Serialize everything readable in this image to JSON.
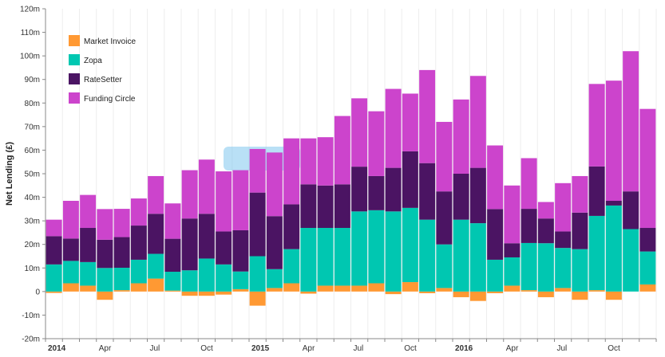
{
  "chart_data": {
    "type": "bar",
    "stacked": true,
    "title": "",
    "ylabel": "Net Lending (£)",
    "xlabel": "",
    "ylim": [
      -20,
      120
    ],
    "yticks": [
      -20,
      -10,
      0,
      10,
      20,
      30,
      40,
      50,
      60,
      70,
      80,
      90,
      100,
      110,
      120
    ],
    "ytick_labels": [
      "-20m",
      "-10m",
      "0",
      "10m",
      "20m",
      "30m",
      "40m",
      "50m",
      "60m",
      "70m",
      "80m",
      "90m",
      "100m",
      "110m",
      "120m"
    ],
    "grid": "vertical",
    "legend_position": "top-left",
    "categories": [
      "Jan 2014",
      "Feb 2014",
      "Mar 2014",
      "Apr 2014",
      "May 2014",
      "Jun 2014",
      "Jul 2014",
      "Aug 2014",
      "Sep 2014",
      "Oct 2014",
      "Nov 2014",
      "Dec 2014",
      "Jan 2015",
      "Feb 2015",
      "Mar 2015",
      "Apr 2015",
      "May 2015",
      "Jun 2015",
      "Jul 2015",
      "Aug 2015",
      "Sep 2015",
      "Oct 2015",
      "Nov 2015",
      "Dec 2015",
      "Jan 2016",
      "Feb 2016",
      "Mar 2016",
      "Apr 2016",
      "May 2016",
      "Jun 2016",
      "Jul 2016",
      "Aug 2016",
      "Sep 2016",
      "Oct 2016",
      "Nov 2016",
      "Dec 2016"
    ],
    "x_tick_labels": [
      {
        "index": 0,
        "label": "2014",
        "bold": true
      },
      {
        "index": 3,
        "label": "Apr",
        "bold": false
      },
      {
        "index": 6,
        "label": "Jul",
        "bold": false
      },
      {
        "index": 9,
        "label": "Oct",
        "bold": false
      },
      {
        "index": 12,
        "label": "2015",
        "bold": true
      },
      {
        "index": 15,
        "label": "Apr",
        "bold": false
      },
      {
        "index": 18,
        "label": "Jul",
        "bold": false
      },
      {
        "index": 21,
        "label": "Oct",
        "bold": false
      },
      {
        "index": 24,
        "label": "2016",
        "bold": true
      },
      {
        "index": 27,
        "label": "Apr",
        "bold": false
      },
      {
        "index": 30,
        "label": "Jul",
        "bold": false
      },
      {
        "index": 33,
        "label": "Oct",
        "bold": false
      }
    ],
    "series": [
      {
        "name": "Market Invoice",
        "color": "#FF9933",
        "values": [
          -0.6,
          3.5,
          2.5,
          -3.5,
          0.6,
          3.5,
          5.5,
          0.4,
          -1.8,
          -1.8,
          -1.3,
          1.0,
          -6.0,
          1.5,
          3.5,
          -0.9,
          2.5,
          2.5,
          2.5,
          3.5,
          -1.1,
          4.0,
          -0.7,
          1.5,
          -2.4,
          -4.0,
          -0.7,
          2.5,
          0.6,
          -2.4,
          1.5,
          -3.5,
          0.6,
          -3.5,
          0.0,
          3.0
        ]
      },
      {
        "name": "Zopa",
        "color": "#00C7B1",
        "values": [
          11.5,
          9.5,
          10.0,
          10.0,
          9.5,
          10.0,
          10.5,
          8.0,
          9.0,
          14.0,
          11.5,
          7.5,
          15.0,
          8.0,
          14.5,
          27.0,
          24.5,
          24.5,
          31.5,
          31.0,
          34.0,
          31.5,
          30.5,
          18.5,
          30.5,
          29.0,
          13.5,
          12.0,
          20.0,
          20.5,
          17.0,
          18.0,
          31.5,
          36.5,
          26.5,
          14.0
        ]
      },
      {
        "name": "RateSetter",
        "color": "#4B1463",
        "values": [
          12.0,
          9.5,
          14.5,
          12.0,
          13.0,
          14.5,
          17.0,
          14.0,
          22.0,
          19.0,
          14.0,
          17.5,
          27.0,
          22.5,
          19.0,
          18.5,
          18.0,
          18.5,
          19.0,
          14.5,
          18.5,
          24.0,
          24.0,
          22.5,
          19.5,
          23.5,
          21.5,
          6.0,
          14.5,
          10.5,
          7.0,
          15.5,
          21.0,
          2.0,
          16.0,
          10.0
        ]
      },
      {
        "name": "Funding Circle",
        "color": "#CC44CC",
        "values": [
          7.0,
          16.0,
          14.0,
          13.0,
          12.0,
          11.5,
          16.0,
          15.0,
          20.5,
          23.0,
          25.5,
          25.5,
          18.5,
          27.0,
          28.0,
          19.5,
          20.5,
          29.0,
          29.0,
          27.5,
          33.5,
          24.5,
          39.5,
          29.5,
          31.5,
          39.0,
          27.0,
          24.5,
          21.5,
          7.0,
          20.5,
          15.5,
          35.0,
          51.0,
          59.5,
          50.5
        ]
      }
    ]
  }
}
